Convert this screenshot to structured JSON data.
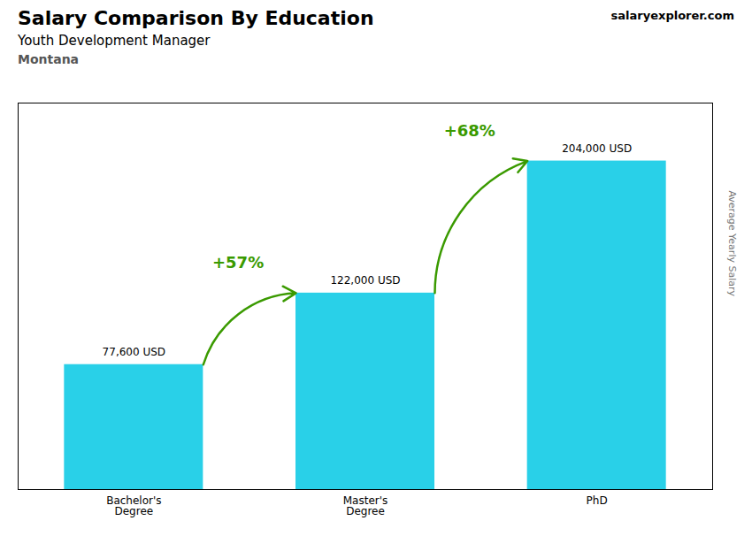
{
  "chart_data": {
    "type": "bar",
    "title": "Salary Comparison By Education",
    "subtitle": "Youth Development Manager",
    "annotations": [
      "Montana",
      "salaryexplorer.com"
    ],
    "ylabel": "Average Yearly Salary",
    "categories": [
      "Bachelor's\nDegree",
      "Master's\nDegree",
      "PhD"
    ],
    "values": [
      77600,
      122000,
      204000
    ],
    "value_labels": [
      "77,600 USD",
      "122,000 USD",
      "204,000 USD"
    ],
    "data_labels": true,
    "pct_labels": [
      "+57%",
      "+68%"
    ],
    "color": "#29d0e8",
    "ylim": [
      0,
      240000
    ],
    "yticks": [],
    "tick_labels": "x",
    "grid": false
  }
}
